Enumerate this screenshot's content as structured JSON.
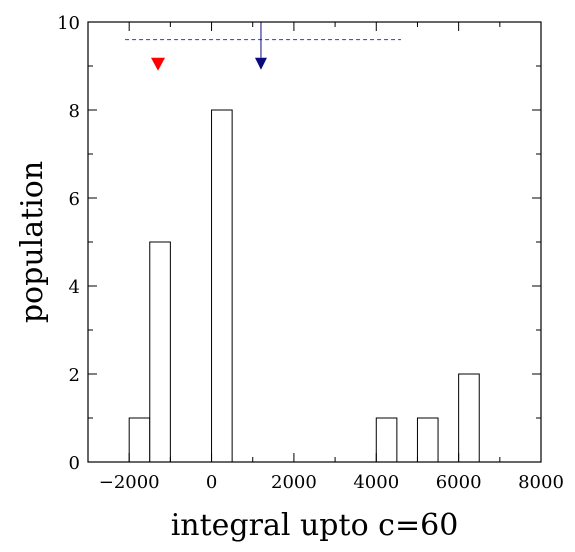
{
  "chart_data": {
    "type": "bar",
    "xlabel": "integral upto c=60",
    "ylabel": "population",
    "xlim": [
      -3000,
      8000
    ],
    "ylim": [
      0,
      10
    ],
    "xticks": [
      -2000,
      0,
      2000,
      4000,
      6000,
      8000
    ],
    "yticks": [
      0,
      2,
      4,
      6,
      8,
      10
    ],
    "bin_width": 500,
    "bins": [
      {
        "left": -2000,
        "count": 1
      },
      {
        "left": -1500,
        "count": 5
      },
      {
        "left": 0,
        "count": 8
      },
      {
        "left": 4000,
        "count": 1
      },
      {
        "left": 5000,
        "count": 1
      },
      {
        "left": 6000,
        "count": 2
      }
    ],
    "annotations": {
      "range_line": {
        "x_start": -2100,
        "x_end": 4600,
        "y": 9.6,
        "style": "dashed",
        "color": "#3a3ab0"
      },
      "red_marker": {
        "x": -1300,
        "y": 9.05,
        "shape": "down-triangle",
        "color": "#ff0000"
      },
      "blue_arrow": {
        "x": 1200,
        "y_from": 10,
        "y_to": 9.05,
        "color": "#0a0a80"
      }
    },
    "grid": false,
    "legend": "none"
  }
}
